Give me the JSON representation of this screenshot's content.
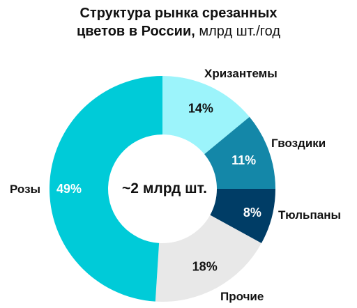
{
  "chart_data": {
    "type": "pie",
    "style": "donut",
    "title_line1": "Структура рынка срезанных",
    "title_line2_bold": "цветов в России,",
    "title_line2_normal": " млрд шт./год",
    "center_label": "~2 млрд шт.",
    "slices": [
      {
        "label": "Хризантемы",
        "value": 14,
        "value_label": "14%",
        "color": "#9cf4fb",
        "value_text_color": "#111111"
      },
      {
        "label": "Гвоздики",
        "value": 11,
        "value_label": "11%",
        "color": "#1487a8",
        "value_text_color": "#ffffff"
      },
      {
        "label": "Тюльпаны",
        "value": 8,
        "value_label": "8%",
        "color": "#003d66",
        "value_text_color": "#ffffff"
      },
      {
        "label": "Прочие",
        "value": 18,
        "value_label": "18%",
        "color": "#e8e8e8",
        "value_text_color": "#111111"
      },
      {
        "label": "Розы",
        "value": 49,
        "value_label": "49%",
        "color": "#00cbd8",
        "value_text_color": "#ffffff"
      }
    ]
  }
}
